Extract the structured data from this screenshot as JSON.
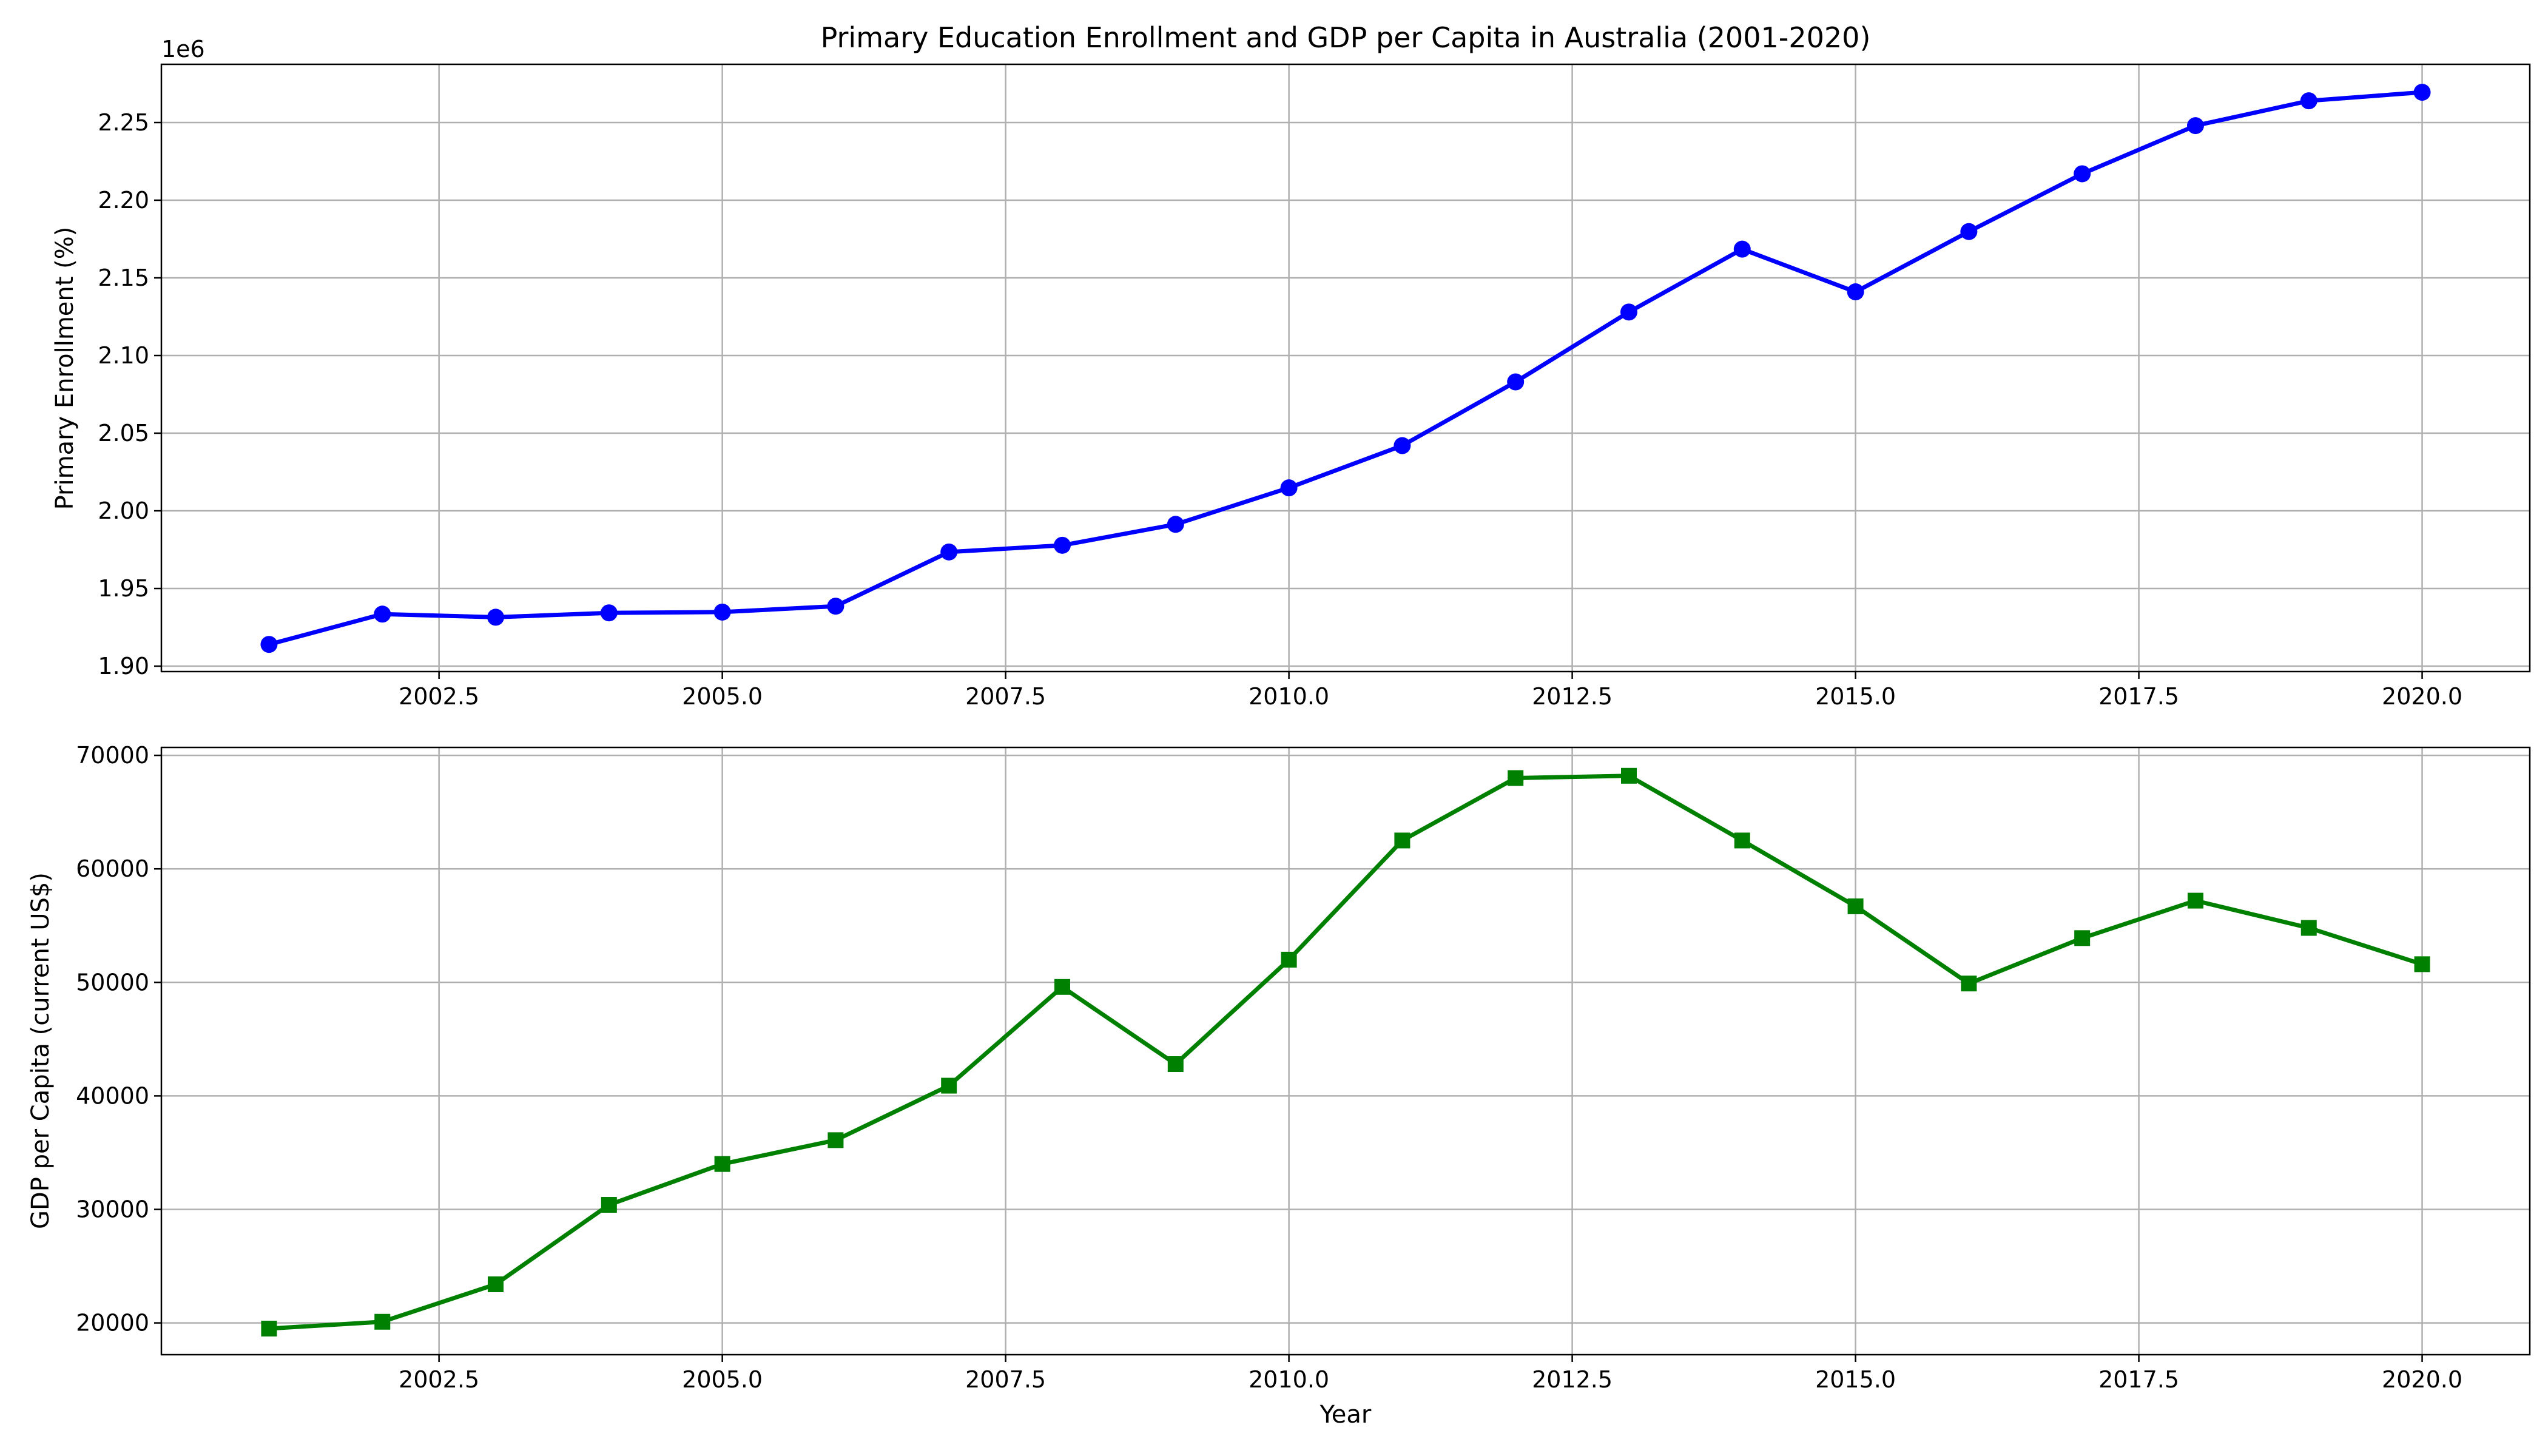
{
  "chart_data": [
    {
      "type": "line",
      "title": "Primary Education Enrollment and GDP per Capita in Australia (2001-2020)",
      "xlabel": "",
      "ylabel": "Primary Enrollment (%)",
      "y_offset_label": "1e6",
      "xlim": [
        2000.05,
        2020.95
      ],
      "ylim": [
        1.8965,
        2.2875
      ],
      "y_scale_factor": 1000000,
      "x_ticks": [
        "2002.5",
        "2005.0",
        "2007.5",
        "2010.0",
        "2012.5",
        "2015.0",
        "2017.5",
        "2020.0"
      ],
      "y_ticks": [
        "1.90",
        "1.95",
        "2.00",
        "2.05",
        "2.10",
        "2.15",
        "2.20",
        "2.25"
      ],
      "grid": true,
      "color": "#0000ff",
      "marker": "circle",
      "series": [
        {
          "x": [
            2001,
            2002,
            2003,
            2004,
            2005,
            2006,
            2007,
            2008,
            2009,
            2010,
            2011,
            2012,
            2013,
            2014,
            2015,
            2016,
            2017,
            2018,
            2019,
            2020
          ],
          "values": [
            1914000,
            1933500,
            1931500,
            1934300,
            1934800,
            1938600,
            1973500,
            1977800,
            1991300,
            2014800,
            2042000,
            2083000,
            2128000,
            2168500,
            2141000,
            2179800,
            2217000,
            2248000,
            2264000,
            2269500
          ]
        }
      ]
    },
    {
      "type": "line",
      "title": "",
      "xlabel": "Year",
      "ylabel": "GDP per Capita (current US$)",
      "xlim": [
        2000.05,
        2020.95
      ],
      "ylim": [
        17200,
        70700
      ],
      "x_ticks": [
        "2002.5",
        "2005.0",
        "2007.5",
        "2010.0",
        "2012.5",
        "2015.0",
        "2017.5",
        "2020.0"
      ],
      "y_ticks": [
        "20000",
        "30000",
        "40000",
        "50000",
        "60000",
        "70000"
      ],
      "grid": true,
      "color": "#008000",
      "marker": "square",
      "series": [
        {
          "x": [
            2001,
            2002,
            2003,
            2004,
            2005,
            2006,
            2007,
            2008,
            2009,
            2010,
            2011,
            2012,
            2013,
            2014,
            2015,
            2016,
            2017,
            2018,
            2019,
            2020
          ],
          "values": [
            19500,
            20100,
            23400,
            30400,
            34000,
            36100,
            40900,
            49600,
            42800,
            52000,
            62500,
            68000,
            68200,
            62500,
            56700,
            49900,
            53900,
            57200,
            54800,
            51600
          ]
        }
      ]
    }
  ]
}
